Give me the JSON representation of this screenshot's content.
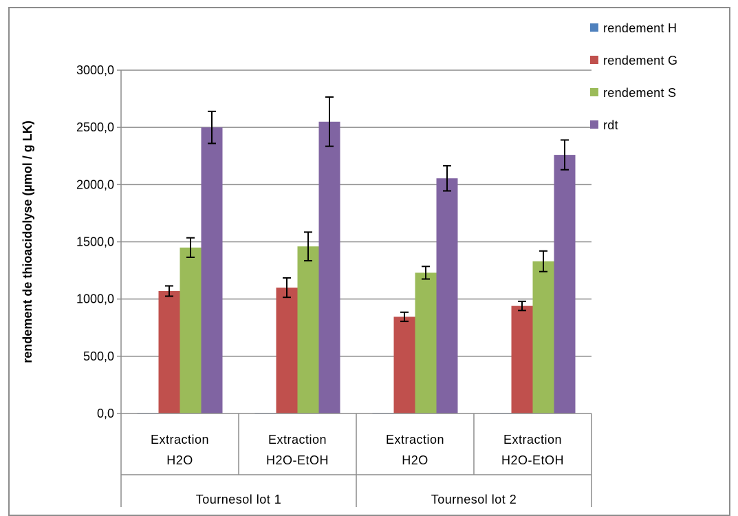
{
  "chart_data": {
    "type": "bar",
    "title": "",
    "xlabel": "",
    "ylabel": "rendement de thioacidolyse  (µmol / g LK)",
    "ylim": [
      0,
      3000
    ],
    "yticks": [
      0,
      500,
      1000,
      1500,
      2000,
      2500,
      3000
    ],
    "ytick_labels": [
      "0,0",
      "500,0",
      "1000,0",
      "1500,0",
      "2000,0",
      "2500,0",
      "3000,0"
    ],
    "grid": true,
    "legend_position": "top-right",
    "categories": [
      [
        "Extraction",
        "H2O"
      ],
      [
        "Extraction",
        "H2O-EtOH"
      ],
      [
        "Extraction",
        "H2O"
      ],
      [
        "Extraction",
        "H2O-EtOH"
      ]
    ],
    "groups": [
      {
        "label": "Tournesol lot 1",
        "span": [
          0,
          1
        ]
      },
      {
        "label": "Tournesol lot 2",
        "span": [
          2,
          3
        ]
      }
    ],
    "series": [
      {
        "name": "rendement H",
        "color": "#4f81bd",
        "values": [
          5,
          5,
          5,
          5
        ],
        "errors": [
          0,
          0,
          0,
          0
        ]
      },
      {
        "name": "rendement G",
        "color": "#c0504d",
        "values": [
          1070,
          1100,
          845,
          940
        ],
        "errors": [
          45,
          85,
          40,
          40
        ]
      },
      {
        "name": "rendement S",
        "color": "#9bbb59",
        "values": [
          1450,
          1460,
          1230,
          1330
        ],
        "errors": [
          85,
          125,
          55,
          90
        ]
      },
      {
        "name": "rdt",
        "color": "#8064a2",
        "values": [
          2500,
          2550,
          2055,
          2260
        ],
        "errors": [
          140,
          215,
          110,
          130
        ]
      }
    ]
  }
}
